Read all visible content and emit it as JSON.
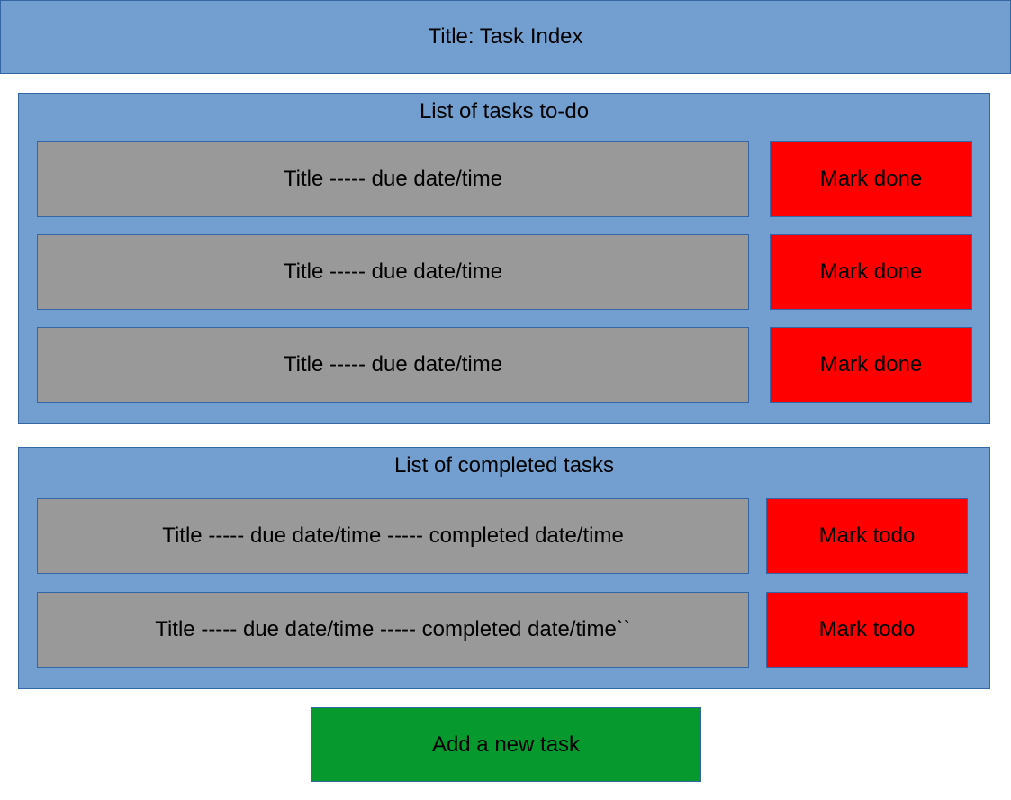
{
  "header": {
    "title": "Title: Task Index"
  },
  "todo_section": {
    "heading": "List of tasks to-do",
    "tasks": [
      {
        "text": "Title ----- due date/time",
        "action_label": "Mark done"
      },
      {
        "text": "Title ----- due date/time",
        "action_label": "Mark done"
      },
      {
        "text": "Title ----- due date/time",
        "action_label": "Mark done"
      }
    ]
  },
  "completed_section": {
    "heading": "List of completed tasks",
    "tasks": [
      {
        "text": "Title ----- due date/time ----- completed date/time",
        "action_label": "Mark todo"
      },
      {
        "text": "Title ----- due date/time ----- completed date/time``",
        "action_label": "Mark todo"
      }
    ]
  },
  "add_task_label": "Add a new task",
  "colors": {
    "panel_blue": "#729fcf",
    "border_blue": "#3465a4",
    "task_grey": "#999999",
    "action_red": "#ff0000",
    "add_green": "#069a2e"
  }
}
